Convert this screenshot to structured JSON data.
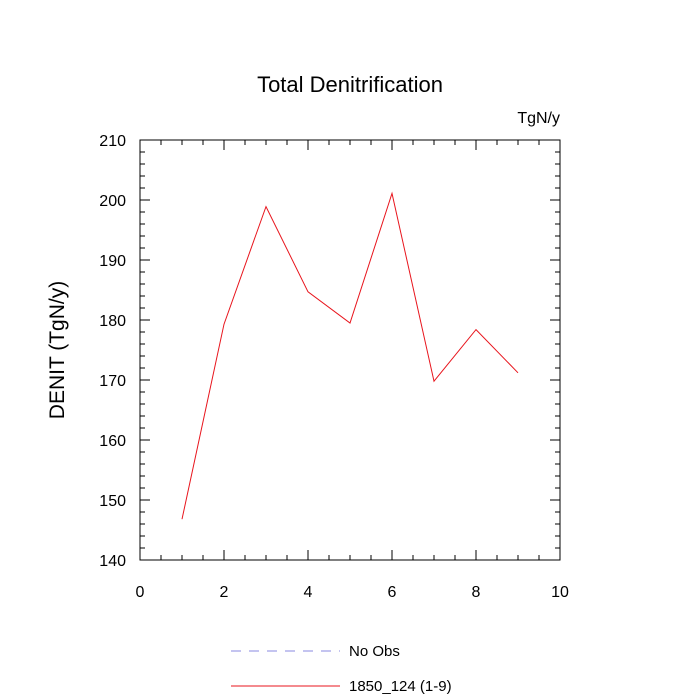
{
  "chart_data": {
    "type": "line",
    "title": "Total Denitrification",
    "units": "TgN/y",
    "xlabel": "",
    "ylabel": "DENIT  (TgN/y)",
    "xlim": [
      0,
      10
    ],
    "ylim": [
      140,
      210
    ],
    "x_ticks": [
      0,
      2,
      4,
      6,
      8,
      10
    ],
    "y_ticks": [
      140,
      150,
      160,
      170,
      180,
      190,
      200,
      210
    ],
    "grid": false,
    "legend_position": "bottom",
    "series": [
      {
        "name": "No Obs",
        "color": "#8a8ae0",
        "line_style": "dashed",
        "x": [],
        "values": []
      },
      {
        "name": "1850_124 (1-9)",
        "color": "#e8141c",
        "line_style": "solid",
        "x": [
          1,
          2,
          3,
          4,
          5,
          6,
          7,
          8,
          9
        ],
        "values": [
          146.8,
          179.3,
          198.9,
          184.7,
          179.5,
          201.1,
          169.8,
          178.4,
          171.2
        ]
      }
    ]
  }
}
